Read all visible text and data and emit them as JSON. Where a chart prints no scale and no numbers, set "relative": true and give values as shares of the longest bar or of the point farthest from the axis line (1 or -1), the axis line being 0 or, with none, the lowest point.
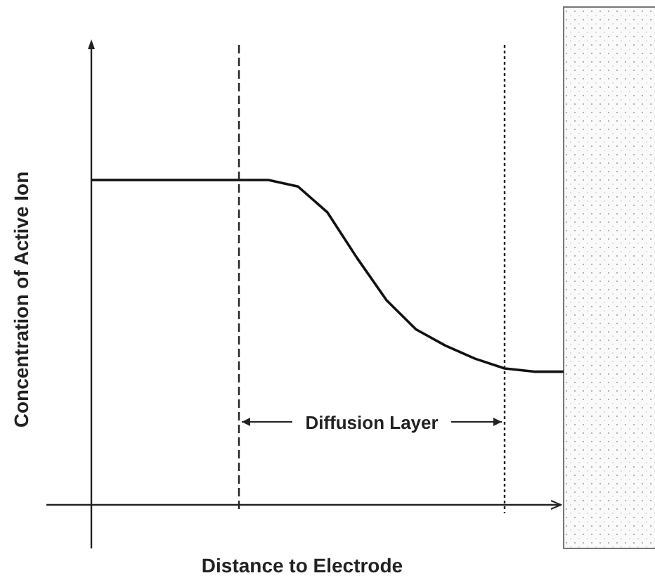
{
  "chart_data": {
    "type": "line",
    "relative": true,
    "marker": "none",
    "line_style": "solid",
    "xlabel": "Distance to Electrode",
    "ylabel": "Concentration of Active Ion",
    "categories": [
      null,
      null,
      null,
      null,
      null,
      null,
      null,
      null,
      null,
      null,
      null,
      null,
      null,
      null,
      null,
      null,
      null
    ],
    "series": [
      {
        "color": "#111111",
        "values": [
          1,
          1,
          1,
          1,
          1,
          1,
          1,
          0.98,
          0.9,
          0.76,
          0.63,
          0.54,
          0.49,
          0.45,
          0.42,
          0.41,
          0.41
        ]
      }
    ],
    "annotations": [
      "Diffusion Layer"
    ]
  }
}
